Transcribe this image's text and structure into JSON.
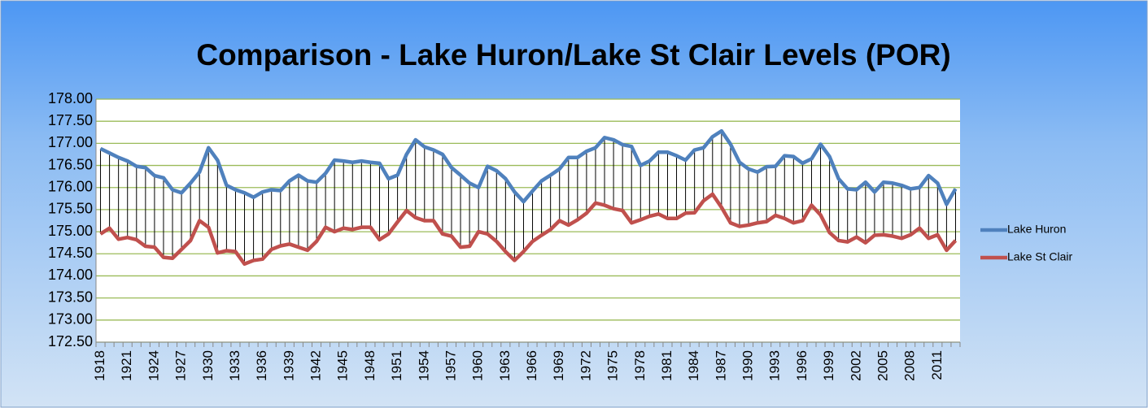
{
  "chart_data": {
    "type": "line",
    "title": "Comparison - Lake Huron/Lake St Clair Levels (POR)",
    "categories": [
      "1918",
      null,
      null,
      "1921",
      null,
      null,
      "1924",
      null,
      null,
      "1927",
      null,
      null,
      "1930",
      null,
      null,
      "1933",
      null,
      null,
      "1936",
      null,
      null,
      "1939",
      null,
      null,
      "1942",
      null,
      null,
      "1945",
      null,
      null,
      "1948",
      null,
      null,
      "1951",
      null,
      null,
      "1954",
      null,
      null,
      "1957",
      null,
      null,
      "1960",
      null,
      null,
      "1963",
      null,
      null,
      "1966",
      null,
      null,
      "1969",
      null,
      null,
      "1972",
      null,
      null,
      "1975",
      null,
      null,
      "1978",
      null,
      null,
      "1981",
      null,
      null,
      "1984",
      null,
      null,
      "1987",
      null,
      null,
      "1990",
      null,
      null,
      "1993",
      null,
      null,
      "1996",
      null,
      null,
      "1999",
      null,
      null,
      "2002",
      null,
      null,
      "2005",
      null,
      null,
      "2008",
      null,
      null,
      "2011",
      null,
      null
    ],
    "series": [
      {
        "name": "Lake Huron",
        "color": "#4f81bd",
        "values": [
          176.88,
          176.78,
          176.68,
          176.6,
          176.48,
          176.45,
          176.27,
          176.22,
          175.95,
          175.88,
          176.1,
          176.35,
          176.9,
          176.62,
          176.05,
          175.95,
          175.88,
          175.78,
          175.9,
          175.95,
          175.93,
          176.15,
          176.28,
          176.15,
          176.12,
          176.32,
          176.62,
          176.6,
          176.57,
          176.6,
          176.57,
          176.55,
          176.2,
          176.28,
          176.75,
          177.08,
          176.92,
          176.85,
          176.75,
          176.45,
          176.28,
          176.1,
          176.0,
          176.48,
          176.38,
          176.2,
          175.9,
          175.68,
          175.92,
          176.15,
          176.28,
          176.42,
          176.68,
          176.68,
          176.82,
          176.9,
          177.13,
          177.08,
          176.97,
          176.93,
          176.5,
          176.6,
          176.8,
          176.8,
          176.72,
          176.62,
          176.85,
          176.9,
          177.15,
          177.28,
          176.98,
          176.57,
          176.42,
          176.35,
          176.47,
          176.48,
          176.72,
          176.7,
          176.55,
          176.65,
          176.98,
          176.7,
          176.2,
          175.97,
          175.95,
          176.12,
          175.9,
          176.12,
          176.1,
          176.05,
          175.97,
          176.0,
          176.27,
          176.1,
          175.62,
          175.97
        ]
      },
      {
        "name": "Lake St Clair",
        "color": "#c0504d",
        "values": [
          174.95,
          175.08,
          174.83,
          174.87,
          174.82,
          174.67,
          174.65,
          174.42,
          174.4,
          174.6,
          174.8,
          175.25,
          175.1,
          174.52,
          174.57,
          174.55,
          174.27,
          174.35,
          174.38,
          174.6,
          174.68,
          174.72,
          174.65,
          174.58,
          174.78,
          175.1,
          175.0,
          175.08,
          175.05,
          175.1,
          175.1,
          174.82,
          174.95,
          175.22,
          175.48,
          175.32,
          175.25,
          175.25,
          174.95,
          174.9,
          174.65,
          174.67,
          175.0,
          174.95,
          174.78,
          174.55,
          174.35,
          174.55,
          174.78,
          174.92,
          175.05,
          175.25,
          175.15,
          175.27,
          175.42,
          175.65,
          175.6,
          175.52,
          175.48,
          175.2,
          175.27,
          175.35,
          175.4,
          175.3,
          175.3,
          175.42,
          175.43,
          175.7,
          175.85,
          175.55,
          175.2,
          175.12,
          175.15,
          175.2,
          175.23,
          175.37,
          175.3,
          175.2,
          175.25,
          175.6,
          175.38,
          174.98,
          174.8,
          174.77,
          174.88,
          174.75,
          174.92,
          174.93,
          174.9,
          174.85,
          174.93,
          175.08,
          174.85,
          174.93,
          174.58,
          174.8
        ]
      }
    ],
    "ylim": [
      172.5,
      178
    ],
    "yticks": [
      {
        "value": 172.5,
        "label": "172.50"
      },
      {
        "value": 173,
        "label": "173.00"
      },
      {
        "value": 173.5,
        "label": "173.50"
      },
      {
        "value": 174,
        "label": "174.00"
      },
      {
        "value": 174.5,
        "label": "174.50"
      },
      {
        "value": 175,
        "label": "175.00"
      },
      {
        "value": 175.5,
        "label": "175.50"
      },
      {
        "value": 176,
        "label": "176.00"
      },
      {
        "value": 176.5,
        "label": "176.50"
      },
      {
        "value": 177,
        "label": "177.00"
      },
      {
        "value": 177.5,
        "label": "177.50"
      },
      {
        "value": 178,
        "label": "178.00"
      }
    ],
    "grid": true,
    "grid_color": "#9bbb59",
    "drop_lines": true,
    "legend": "right"
  }
}
